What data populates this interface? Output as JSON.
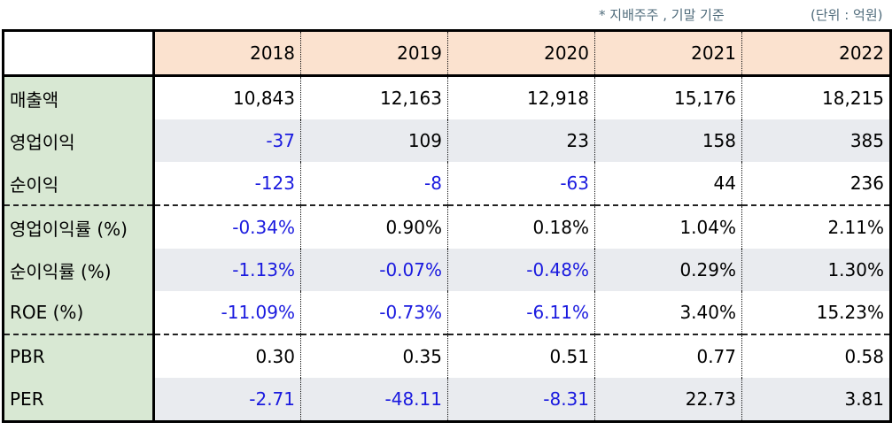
{
  "notes": {
    "basis": "* 지배주주 , 기말 기준",
    "unit": "(단위 : 억원)"
  },
  "table": {
    "years": [
      "2018",
      "2019",
      "2020",
      "2021",
      "2022"
    ],
    "rows": [
      {
        "label": "매출액",
        "values": [
          "10,843",
          "12,163",
          "12,918",
          "15,176",
          "18,215"
        ]
      },
      {
        "label": "영업이익",
        "values": [
          "-37",
          "109",
          "23",
          "158",
          "385"
        ]
      },
      {
        "label": "순이익",
        "values": [
          "-123",
          "-8",
          "-63",
          "44",
          "236"
        ]
      },
      {
        "label": "영업이익률 (%)",
        "values": [
          "-0.34%",
          "0.90%",
          "0.18%",
          "1.04%",
          "2.11%"
        ]
      },
      {
        "label": "순이익률 (%)",
        "values": [
          "-1.13%",
          "-0.07%",
          "-0.48%",
          "0.29%",
          "1.30%"
        ]
      },
      {
        "label": "ROE (%)",
        "values": [
          "-11.09%",
          "-0.73%",
          "-6.11%",
          "3.40%",
          "15.23%"
        ]
      },
      {
        "label": "PBR",
        "values": [
          "0.30",
          "0.35",
          "0.51",
          "0.77",
          "0.58"
        ]
      },
      {
        "label": "PER",
        "values": [
          "-2.71",
          "-48.11",
          "-8.31",
          "22.73",
          "3.81"
        ]
      }
    ]
  },
  "colors": {
    "header_bg": "#fbe2cf",
    "label_bg": "#d8e8d3",
    "shade_bg": "#e9ebef",
    "negative_text": "#1a1adf",
    "note_text": "#4f6b7b"
  }
}
